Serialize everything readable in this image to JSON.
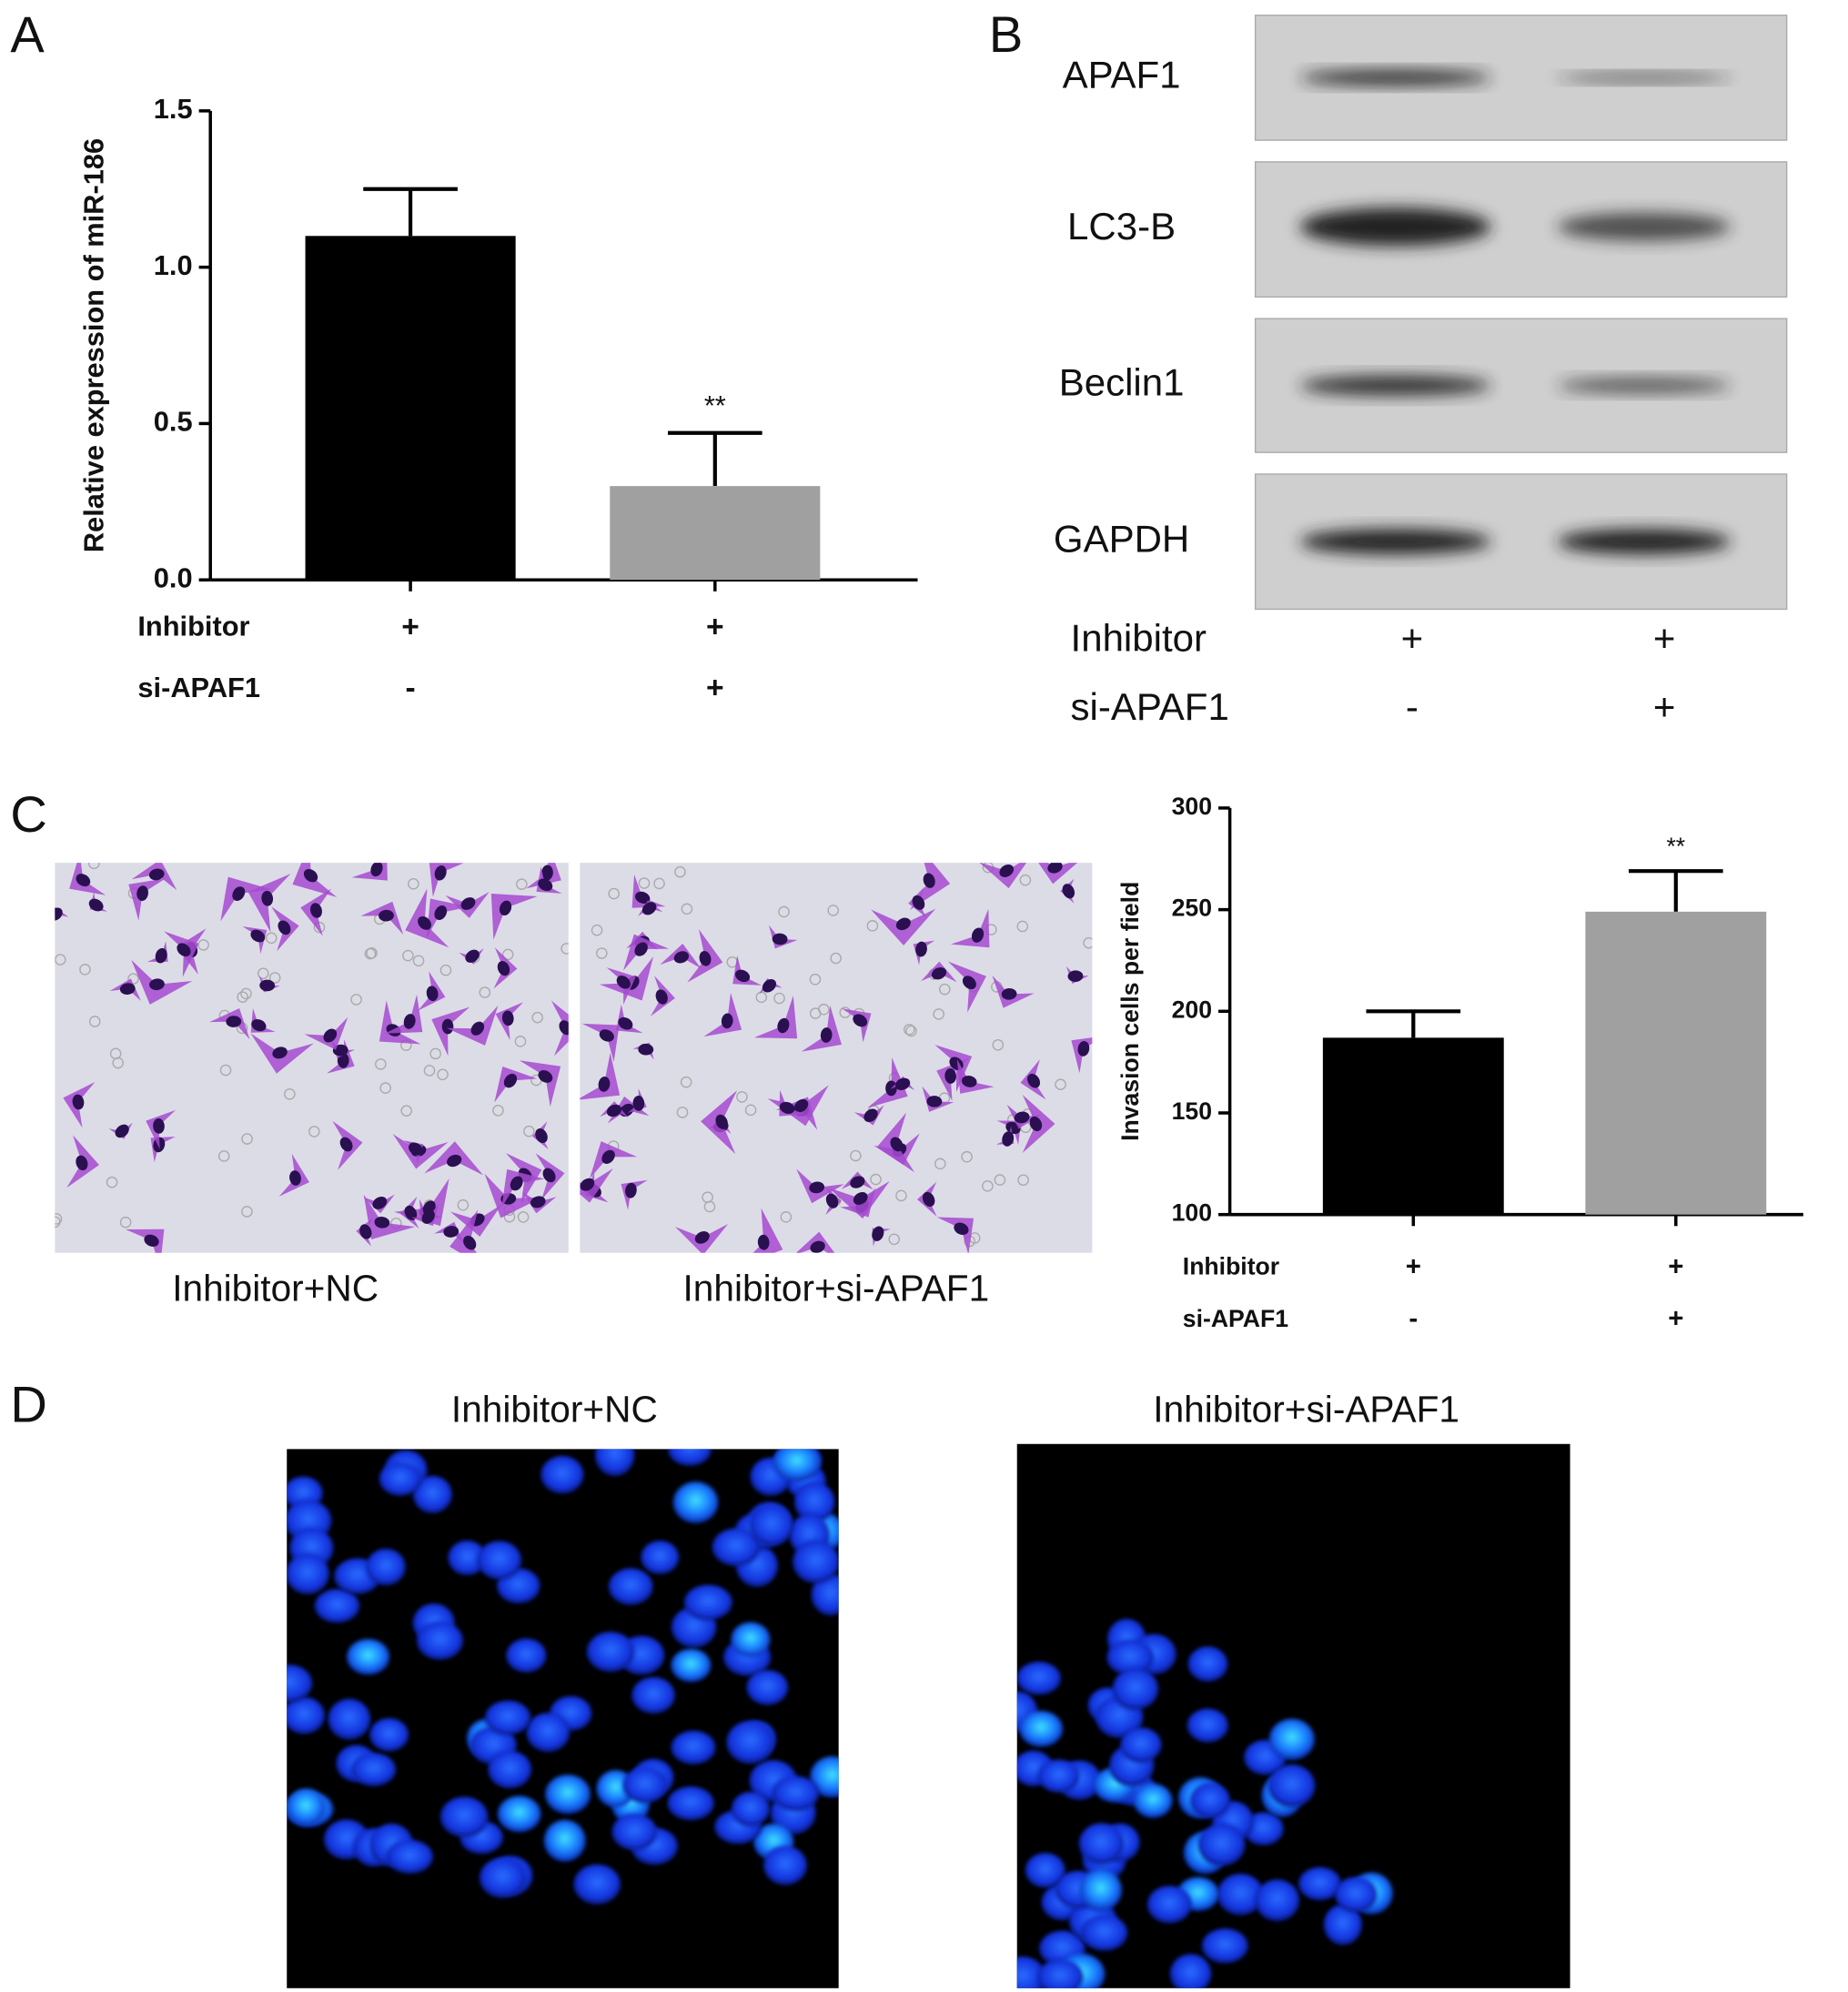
{
  "panels": [
    "A",
    "B",
    "C",
    "D"
  ],
  "chart_data": [
    {
      "type": "bar",
      "y_label": "Relative expression of miR-186",
      "categories": [
        null,
        null
      ],
      "values": [
        1.1,
        0.3
      ],
      "errors": [
        0.15,
        0.17
      ],
      "colors": [
        "#000000",
        "#a0a0a0"
      ],
      "significance": [
        null,
        "**"
      ],
      "ylim": [
        0,
        1.5
      ],
      "yticks": [
        {
          "value": 0,
          "label": "0.0"
        },
        0.5,
        {
          "value": 1,
          "label": "1.0"
        },
        1.5
      ],
      "conditions": [
        {
          "label": "Inhibitor",
          "values": [
            "+",
            "+"
          ]
        },
        {
          "label": "si-APAF1",
          "values": [
            "-",
            "+"
          ]
        }
      ]
    },
    {
      "type": "bar",
      "y_label": "Invasion cells per field",
      "categories": [
        null,
        null
      ],
      "values": [
        187,
        249
      ],
      "errors": [
        13,
        20
      ],
      "colors": [
        "#000000",
        "#a0a0a0"
      ],
      "significance": [
        null,
        "**"
      ],
      "ylim": [
        100,
        300
      ],
      "yticks": [
        100,
        150,
        200,
        250,
        300
      ],
      "conditions": [
        {
          "label": "Inhibitor",
          "values": [
            "+",
            "+"
          ]
        },
        {
          "label": "si-APAF1",
          "values": [
            "-",
            "+"
          ]
        }
      ]
    }
  ],
  "blot": {
    "labels": [
      "APAF1",
      "LC3-B",
      "Beclin1",
      "GAPDH"
    ],
    "conditions": [
      {
        "label": "Inhibitor",
        "values": [
          "+",
          "+"
        ]
      },
      {
        "label": "si-APAF1",
        "values": [
          "-",
          "+"
        ]
      }
    ]
  },
  "micrographs": {
    "captions": [
      "Inhibitor+NC",
      "Inhibitor+si-APAF1"
    ]
  },
  "fluorescence": {
    "titles": [
      "Inhibitor+NC",
      "Inhibitor+si-APAF1"
    ]
  }
}
